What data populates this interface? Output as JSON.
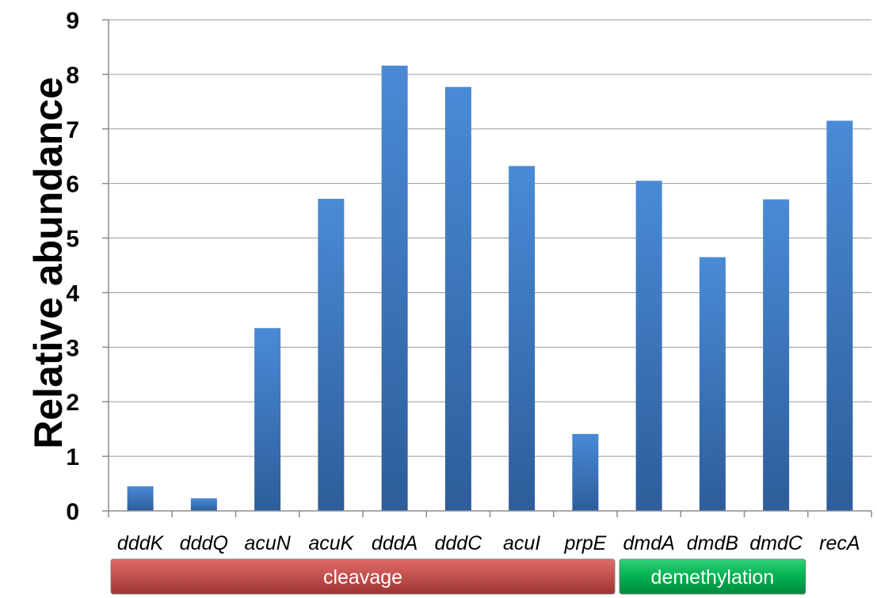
{
  "chart_data": {
    "type": "bar",
    "title": "",
    "xlabel": "",
    "ylabel": "Relative abundance",
    "ylim": [
      0,
      9
    ],
    "yticks": [
      0,
      1,
      2,
      3,
      4,
      5,
      6,
      7,
      8,
      9
    ],
    "grid": true,
    "categories": [
      "dddK",
      "dddQ",
      "acuN",
      "acuK",
      "dddA",
      "dddC",
      "acuI",
      "prpE",
      "dmdA",
      "dmdB",
      "dmdC",
      "recA"
    ],
    "values": [
      0.45,
      0.23,
      3.35,
      5.72,
      8.16,
      7.77,
      6.32,
      1.41,
      6.05,
      4.65,
      5.71,
      7.15
    ],
    "groups": [
      {
        "label": "cleavage",
        "first": 0,
        "last": 7,
        "color": "#c0504d"
      },
      {
        "label": "demethylation",
        "first": 8,
        "last": 10,
        "color": "#00b050"
      }
    ],
    "bar_color_light": "#4a8ad6",
    "bar_color_dark": "#2d5d9a",
    "grid_color": "#9a9a9a",
    "axis_color": "#8c8c8c"
  }
}
